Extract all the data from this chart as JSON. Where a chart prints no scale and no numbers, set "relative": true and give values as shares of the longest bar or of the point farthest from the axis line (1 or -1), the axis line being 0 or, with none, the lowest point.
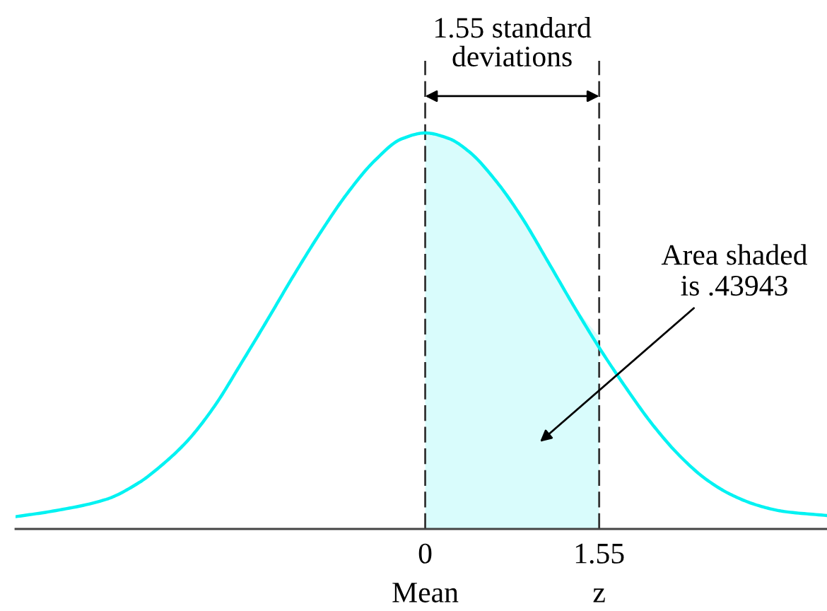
{
  "chart_data": {
    "type": "line",
    "relative": true,
    "xlim": [
      -3.65,
      3.58
    ],
    "xticks": [
      {
        "value": 0,
        "label": "0\nMean"
      },
      {
        "value": 1.55,
        "label": "1.55\nz"
      }
    ],
    "series": [
      {
        "color": "#00f2f2",
        "x": [
          -3.65,
          -3.32,
          -2.84,
          -2.55,
          -2.36,
          -2.12,
          -1.88,
          -1.64,
          -1.41,
          -1.17,
          -0.93,
          -0.69,
          -0.45,
          -0.21,
          0,
          0.21,
          0.39,
          0.63,
          0.86,
          1.1,
          1.33,
          1.55,
          1.8,
          2.03,
          2.27,
          2.5,
          2.73,
          2.97,
          3.2,
          3.58
        ],
        "values": [
          0.031,
          0.045,
          0.075,
          0.117,
          0.158,
          0.222,
          0.309,
          0.418,
          0.526,
          0.641,
          0.75,
          0.849,
          0.93,
          0.985,
          1,
          0.986,
          0.953,
          0.879,
          0.787,
          0.672,
          0.56,
          0.458,
          0.352,
          0.262,
          0.184,
          0.126,
          0.086,
          0.059,
          0.044,
          0.034
        ]
      },
      {
        "type": "area",
        "color": "#d9fcfc",
        "x": [
          0,
          0.21,
          0.39,
          0.63,
          0.86,
          1.1,
          1.33,
          1.55
        ],
        "values": [
          1,
          0.986,
          0.953,
          0.879,
          0.787,
          0.672,
          0.563,
          0.485
        ]
      }
    ],
    "ref_lines": [
      {
        "axis": "x",
        "value": 0,
        "line_style": "dashed",
        "color": "#333333"
      },
      {
        "axis": "x",
        "value": 1.55,
        "line_style": "dashed",
        "color": "#333333"
      }
    ],
    "annotations": [
      "1.55 standard\ndeviations",
      "Area shaded\nis .43943"
    ]
  }
}
